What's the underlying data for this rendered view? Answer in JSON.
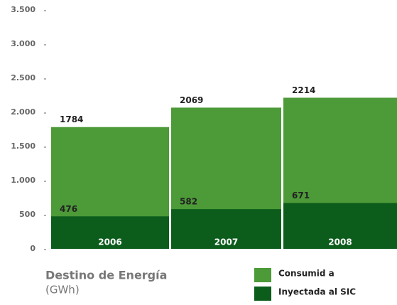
{
  "chart_data": {
    "type": "bar",
    "title": "Destino de Energía",
    "subtitle": "(GWh)",
    "categories": [
      "2006",
      "2007",
      "2008"
    ],
    "series": [
      {
        "name": "Consumid a",
        "color": "#4c9a38",
        "values": [
          1784,
          2069,
          2214
        ]
      },
      {
        "name": "Inyectada al SIC",
        "color": "#0c5c1c",
        "values": [
          476,
          582,
          671
        ]
      }
    ],
    "ylim": [
      0,
      3500
    ],
    "yticks": [
      0,
      500,
      {
        "value": 1000,
        "label": "1.000"
      },
      {
        "value": 1500,
        "label": "1.500"
      },
      {
        "value": 2000,
        "label": "2.000"
      },
      {
        "value": 2500,
        "label": "2.500"
      },
      {
        "value": 3000,
        "label": "3.000"
      },
      {
        "value": 3500,
        "label": "3.500"
      }
    ]
  }
}
